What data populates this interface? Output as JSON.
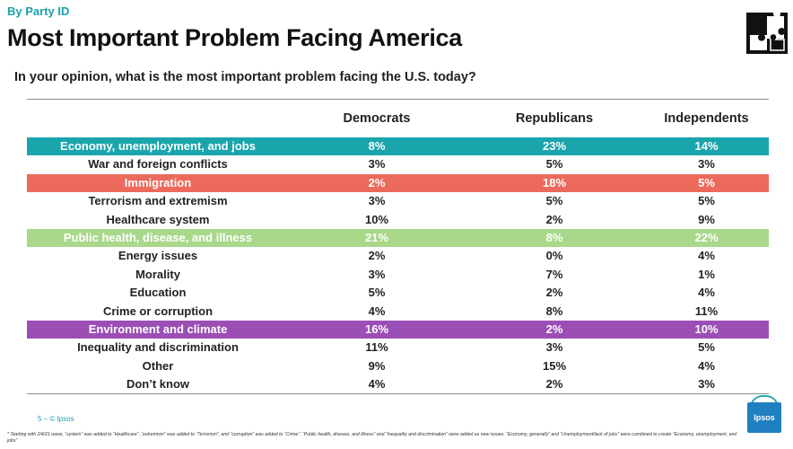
{
  "header": {
    "kicker": "By Party ID",
    "title": "Most Important Problem Facing America",
    "subtitle": "In your opinion, what is the most important problem facing the U.S. today?"
  },
  "columns": [
    "Democrats",
    "Republicans",
    "Independents"
  ],
  "rows": [
    {
      "label": "Economy, unemployment, and jobs",
      "dem": "8%",
      "rep": "23%",
      "ind": "14%",
      "highlight": "#1aa5ad"
    },
    {
      "label": "War and foreign conflicts",
      "dem": "3%",
      "rep": "5%",
      "ind": "3%",
      "highlight": null
    },
    {
      "label": "Immigration",
      "dem": "2%",
      "rep": "18%",
      "ind": "5%",
      "highlight": "#ec6a5c"
    },
    {
      "label": "Terrorism and extremism",
      "dem": "3%",
      "rep": "5%",
      "ind": "5%",
      "highlight": null
    },
    {
      "label": "Healthcare system",
      "dem": "10%",
      "rep": "2%",
      "ind": "9%",
      "highlight": null
    },
    {
      "label": "Public health, disease, and illness",
      "dem": "21%",
      "rep": "8%",
      "ind": "22%",
      "highlight": "#a9d88a"
    },
    {
      "label": "Energy issues",
      "dem": "2%",
      "rep": "0%",
      "ind": "4%",
      "highlight": null
    },
    {
      "label": "Morality",
      "dem": "3%",
      "rep": "7%",
      "ind": "1%",
      "highlight": null
    },
    {
      "label": "Education",
      "dem": "5%",
      "rep": "2%",
      "ind": "4%",
      "highlight": null
    },
    {
      "label": "Crime or corruption",
      "dem": "4%",
      "rep": "8%",
      "ind": "11%",
      "highlight": null
    },
    {
      "label": "Environment and climate",
      "dem": "16%",
      "rep": "2%",
      "ind": "10%",
      "highlight": "#9b4fb5"
    },
    {
      "label": "Inequality and discrimination",
      "dem": "11%",
      "rep": "3%",
      "ind": "5%",
      "highlight": null
    },
    {
      "label": "Other",
      "dem": "9%",
      "rep": "15%",
      "ind": "4%",
      "highlight": null
    },
    {
      "label": "Don’t know",
      "dem": "4%",
      "rep": "2%",
      "ind": "3%",
      "highlight": null
    }
  ],
  "footer": {
    "page": "5 ‒ © Ipsos",
    "note": "* Starting with 2/4/21 wave, “system” was added to “Healthcare” ,“extremism” was added to “Terrorism”, and “corruption” was added to “Crime”. “Public health, disease, and illness” and “Inequality and discrimination” were added as new issues. “Economy, generally” and “Unemployment/lack of jobs” were combined to create “Economy, unemployment, and jobs”",
    "brand": "Ipsos"
  },
  "icons": {
    "puzzle": "puzzle-icon"
  }
}
